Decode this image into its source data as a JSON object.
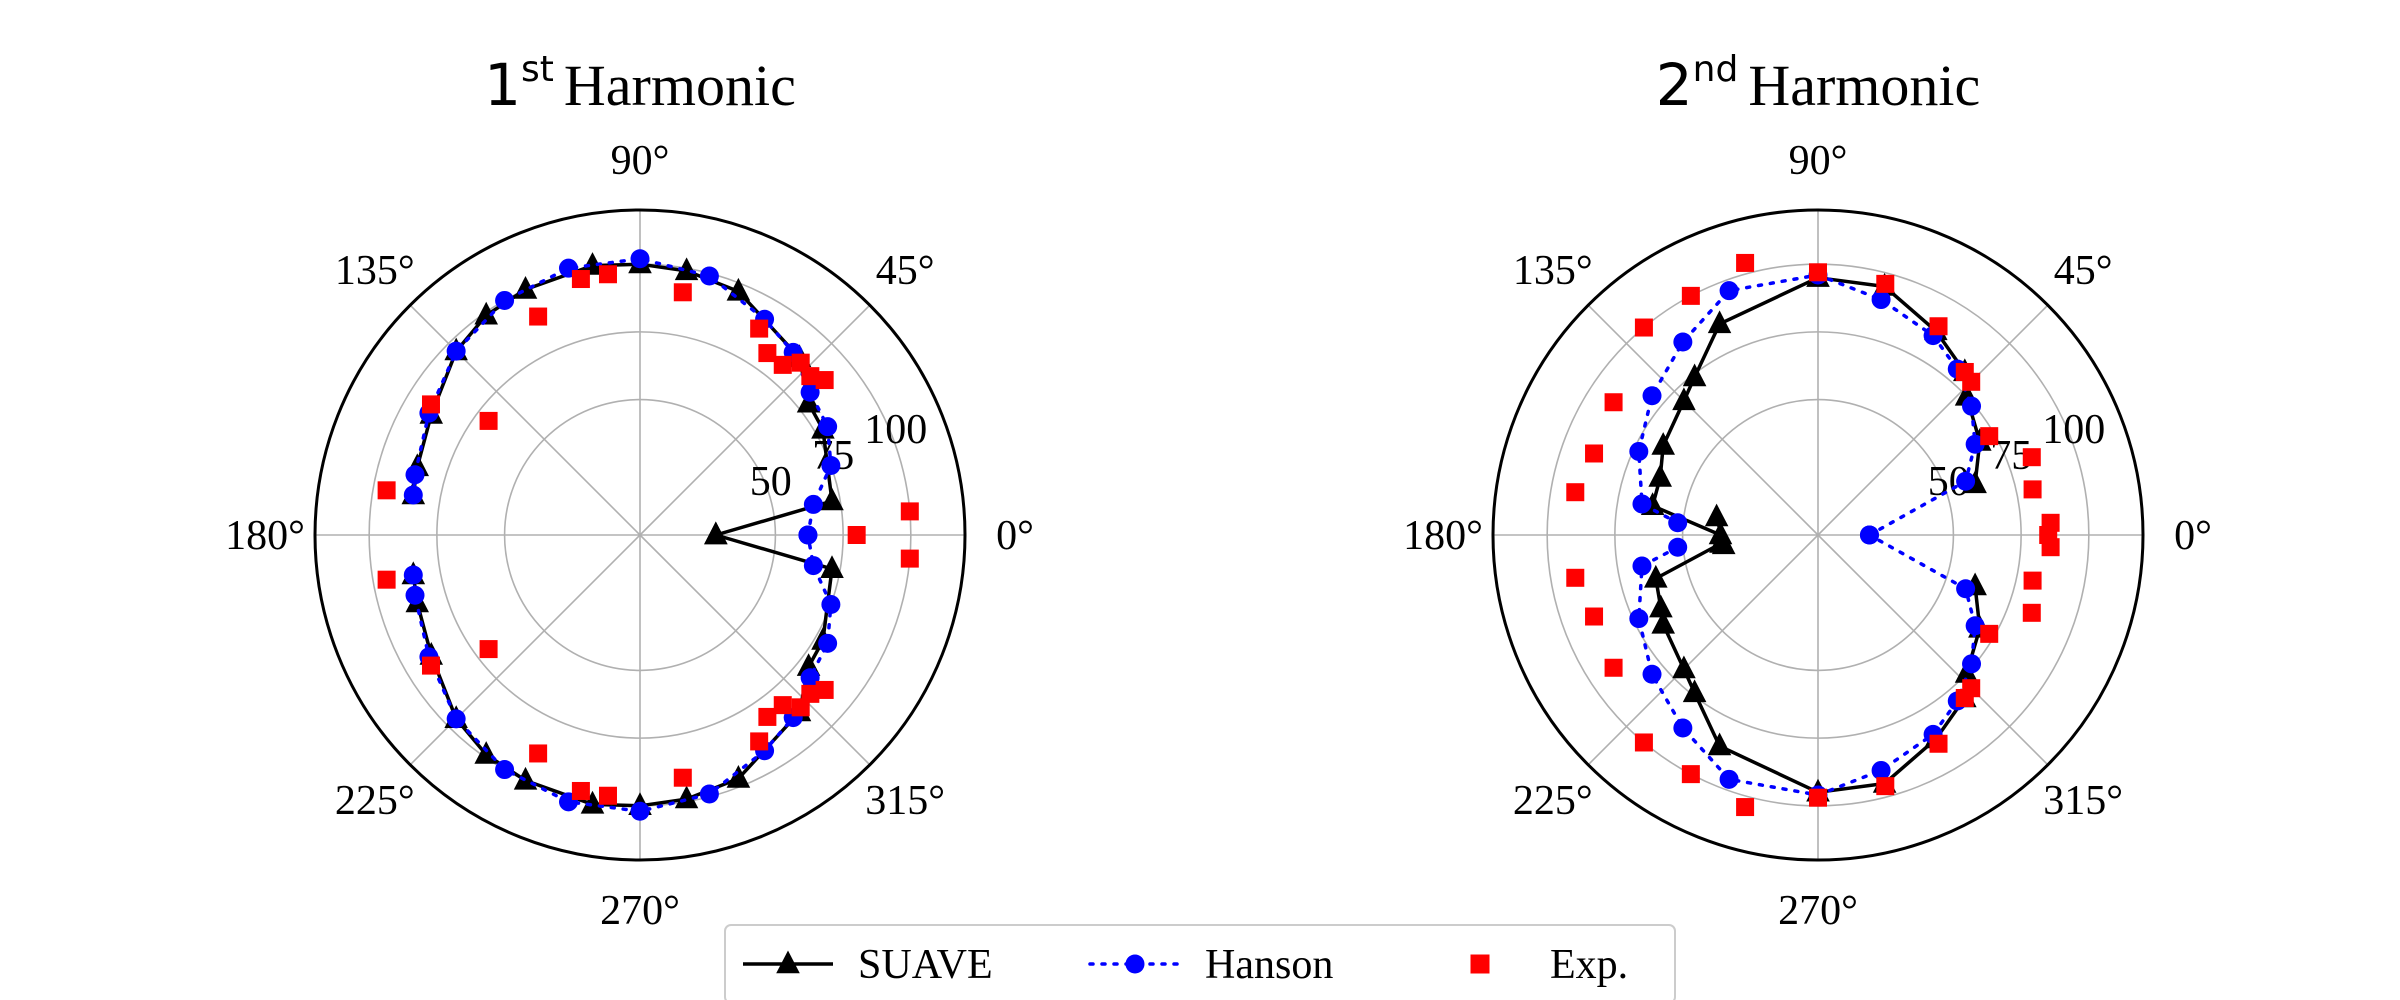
{
  "chart_data": [
    {
      "type": "polar-line",
      "title": {
        "base": "1",
        "sup": "st",
        "word": "Harmonic"
      },
      "angle_ticks": [
        "0°",
        "45°",
        "90°",
        "135°",
        "180°",
        "225°",
        "270°",
        "315°"
      ],
      "angle_tick_values": [
        0,
        45,
        90,
        135,
        180,
        225,
        270,
        315
      ],
      "radial_ticks": [
        "50",
        "75",
        "100"
      ],
      "radial_tick_values": [
        50,
        75,
        100
      ],
      "rlim": [
        0,
        120
      ],
      "grid": true,
      "series": [
        {
          "name": "SUAVE",
          "color": "#000000",
          "marker": "triangle",
          "linestyle": "solid",
          "segments": [
            [
              [
                0,
                28
              ],
              [
                10,
                72
              ],
              [
                30,
                78
              ],
              [
                38,
                79
              ],
              [
                48,
                88
              ],
              [
                68,
                97
              ],
              [
                80,
                99
              ],
              [
                90,
                100
              ],
              [
                100,
                101
              ],
              [
                115,
                100
              ],
              [
                125,
                99
              ],
              [
                135,
                96
              ],
              [
                150,
                89
              ],
              [
                163,
                86
              ],
              [
                170,
                85
              ]
            ],
            [
              [
                190,
                85
              ],
              [
                197,
                86
              ],
              [
                210,
                89
              ],
              [
                225,
                96
              ],
              [
                235,
                99
              ],
              [
                245,
                100
              ],
              [
                260,
                101
              ],
              [
                270,
                100
              ],
              [
                280,
                99
              ],
              [
                292,
                97
              ],
              [
                312,
                88
              ],
              [
                322,
                79
              ],
              [
                330,
                78
              ],
              [
                350,
                72
              ],
              [
                360,
                28
              ]
            ]
          ]
        },
        {
          "name": "Hanson",
          "color": "#0000ff",
          "marker": "circle",
          "linestyle": "dotted",
          "segments": [
            [
              [
                0,
                62
              ],
              [
                10,
                65
              ],
              [
                20,
                75
              ],
              [
                30,
                80
              ],
              [
                40,
                82
              ],
              [
                50,
                88
              ],
              [
                60,
                92
              ],
              [
                75,
                99
              ],
              [
                90,
                102
              ],
              [
                105,
                102
              ],
              [
                120,
                100
              ],
              [
                135,
                96
              ],
              [
                150,
                90
              ],
              [
                165,
                86
              ],
              [
                170,
                85
              ]
            ],
            [
              [
                190,
                85
              ],
              [
                195,
                86
              ],
              [
                210,
                90
              ],
              [
                225,
                96
              ],
              [
                240,
                100
              ],
              [
                255,
                102
              ],
              [
                270,
                102
              ],
              [
                285,
                99
              ],
              [
                300,
                92
              ],
              [
                310,
                88
              ],
              [
                320,
                82
              ],
              [
                330,
                80
              ],
              [
                340,
                75
              ],
              [
                350,
                65
              ],
              [
                360,
                62
              ]
            ]
          ]
        },
        {
          "name": "Exp.",
          "color": "#ff0000",
          "marker": "square",
          "linestyle": "none",
          "points": [
            [
              0,
              80
            ],
            [
              5,
              100
            ],
            [
              355,
              100
            ],
            [
              40,
              89
            ],
            [
              43,
              86
            ],
            [
              47,
              87
            ],
            [
              50,
              82
            ],
            [
              55,
              82
            ],
            [
              60,
              88
            ],
            [
              80,
              91
            ],
            [
              97,
              97
            ],
            [
              103,
              97
            ],
            [
              115,
              89
            ],
            [
              143,
              70
            ],
            [
              148,
              91
            ],
            [
              170,
              95
            ],
            [
              190,
              95
            ],
            [
              212,
              91
            ],
            [
              217,
              70
            ],
            [
              245,
              89
            ],
            [
              257,
              97
            ],
            [
              263,
              97
            ],
            [
              280,
              91
            ],
            [
              300,
              88
            ],
            [
              305,
              82
            ],
            [
              310,
              82
            ],
            [
              313,
              87
            ],
            [
              317,
              86
            ],
            [
              320,
              89
            ]
          ]
        }
      ]
    },
    {
      "type": "polar-line",
      "title": {
        "base": "2",
        "sup": "nd",
        "word": "Harmonic"
      },
      "angle_ticks": [
        "0°",
        "45°",
        "90°",
        "135°",
        "180°",
        "225°",
        "270°",
        "315°"
      ],
      "angle_tick_values": [
        0,
        45,
        90,
        135,
        180,
        225,
        270,
        315
      ],
      "radial_ticks": [
        "50",
        "75",
        "100"
      ],
      "radial_tick_values": [
        50,
        75,
        100
      ],
      "rlim": [
        0,
        120
      ],
      "grid": true,
      "series": [
        {
          "name": "SUAVE",
          "color": "#000000",
          "marker": "triangle",
          "linestyle": "solid",
          "segments": [
            [
              [
                18,
                61
              ],
              [
                30,
                69
              ],
              [
                43,
                75
              ],
              [
                48,
                81
              ],
              [
                60,
                87
              ],
              [
                75,
                95
              ],
              [
                90,
                95
              ],
              [
                115,
                86
              ],
              [
                128,
                74
              ],
              [
                135,
                70
              ],
              [
                150,
                66
              ],
              [
                160,
                62
              ],
              [
                170,
                62
              ],
              [
                180,
                36
              ],
              [
                186,
                35
              ],
              [
                170,
                38
              ]
            ],
            [
              [
                185,
                36
              ],
              [
                195,
                62
              ],
              [
                205,
                64
              ],
              [
                210,
                66
              ],
              [
                225,
                70
              ],
              [
                232,
                74
              ],
              [
                245,
                86
              ],
              [
                270,
                95
              ],
              [
                285,
                95
              ],
              [
                300,
                87
              ],
              [
                312,
                81
              ],
              [
                317,
                75
              ],
              [
                330,
                69
              ],
              [
                342,
                61
              ]
            ]
          ]
        },
        {
          "name": "Hanson",
          "color": "#0000ff",
          "marker": "circle",
          "linestyle": "dotted",
          "segments": [
            [
              [
                0,
                19
              ],
              [
                20,
                58
              ],
              [
                30,
                67
              ],
              [
                40,
                74
              ],
              [
                50,
                80
              ],
              [
                60,
                85
              ],
              [
                75,
                90
              ],
              [
                90,
                96
              ],
              [
                110,
                96
              ],
              [
                125,
                87
              ],
              [
                140,
                80
              ],
              [
                155,
                73
              ],
              [
                170,
                66
              ],
              [
                175,
                52
              ]
            ],
            [
              [
                185,
                52
              ],
              [
                190,
                66
              ],
              [
                205,
                73
              ],
              [
                220,
                80
              ],
              [
                235,
                87
              ],
              [
                250,
                96
              ],
              [
                270,
                96
              ],
              [
                285,
                90
              ],
              [
                300,
                85
              ],
              [
                310,
                80
              ],
              [
                320,
                74
              ],
              [
                330,
                67
              ],
              [
                340,
                58
              ],
              [
                360,
                19
              ]
            ]
          ]
        },
        {
          "name": "Exp.",
          "color": "#ff0000",
          "marker": "square",
          "linestyle": "none",
          "points": [
            [
              0,
              85
            ],
            [
              3,
              86
            ],
            [
              357,
              86
            ],
            [
              12,
              81
            ],
            [
              20,
              84
            ],
            [
              30,
              73
            ],
            [
              45,
              80
            ],
            [
              48,
              81
            ],
            [
              60,
              89
            ],
            [
              75,
              96
            ],
            [
              90,
              97
            ],
            [
              105,
              104
            ],
            [
              118,
              100
            ],
            [
              130,
              100
            ],
            [
              147,
              90
            ],
            [
              160,
              88
            ],
            [
              170,
              91
            ],
            [
              190,
              91
            ],
            [
              200,
              88
            ],
            [
              213,
              90
            ],
            [
              230,
              100
            ],
            [
              242,
              100
            ],
            [
              255,
              104
            ],
            [
              270,
              97
            ],
            [
              285,
              96
            ],
            [
              300,
              89
            ],
            [
              312,
              81
            ],
            [
              315,
              80
            ],
            [
              330,
              73
            ],
            [
              340,
              84
            ],
            [
              348,
              81
            ]
          ]
        }
      ]
    }
  ],
  "legend": {
    "placement": "bottom-center",
    "entries": [
      {
        "label": "SUAVE",
        "color": "#000000",
        "marker": "triangle",
        "linestyle": "solid"
      },
      {
        "label": "Hanson",
        "color": "#0000ff",
        "marker": "circle",
        "linestyle": "dotted"
      },
      {
        "label": "Exp.",
        "color": "#ff0000",
        "marker": "square",
        "linestyle": "none"
      }
    ]
  }
}
